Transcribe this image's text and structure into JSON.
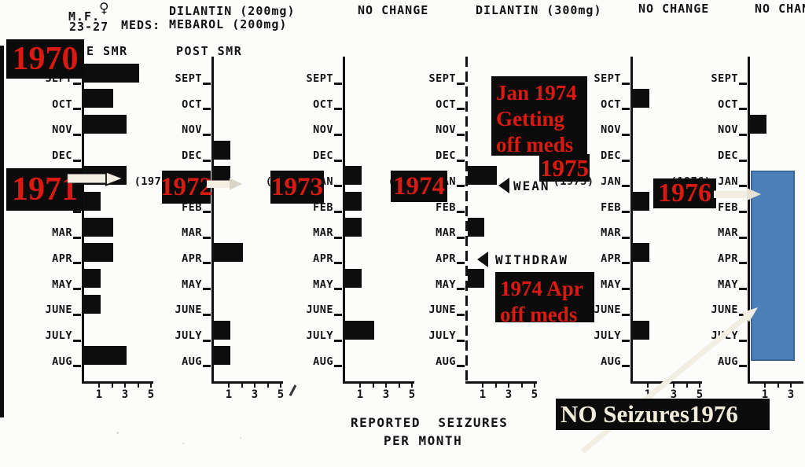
{
  "colors": {
    "annotation_red": "#d91a12",
    "overlay_blue": "#4d80b8",
    "box_black": "#0b0b0b",
    "arrow_cream": "#f2eee2",
    "ink": "#121212",
    "paper": "#fcfcfb"
  },
  "header": {
    "patient_initials": "M.F.",
    "sex_symbol": "♀",
    "age_range": "23-27",
    "meds_label": "MEDS:",
    "med_line1": "DILANTIN (200mg)",
    "med_line2": "MEBAROL (200mg)",
    "period2": "NO CHANGE",
    "period3": "DILANTIN (300mg)",
    "period4": "NO CHANGE",
    "period5": "NO CHAN",
    "pre_smr": "E SMR",
    "post_smr": "POST SMR"
  },
  "chart_data": {
    "type": "bar",
    "orientation": "horizontal",
    "title": "Reported seizures per month, Sept–Aug yearly panels, 1970–1976",
    "categories": [
      "SEPT",
      "OCT",
      "NOV",
      "DEC",
      "JAN",
      "FEB",
      "MAR",
      "APR",
      "MAY",
      "JUNE",
      "JULY",
      "AUG"
    ],
    "x_ticks": [
      1,
      3,
      5
    ],
    "xlim": [
      0,
      6
    ],
    "xlabel": "REPORTED SEIZURES PER MONTH",
    "xlabel_lines": [
      "REPORTED  SEIZURES",
      "PER MONTH"
    ],
    "legend_position": "none",
    "grid": false,
    "charts": [
      {
        "jan_axis_label": "JAN",
        "values": [
          4,
          2,
          3,
          0,
          3,
          1,
          2,
          2,
          1,
          1,
          0,
          3
        ]
      },
      {
        "jan_axis_label": "(1972) JAN",
        "values": [
          0,
          0,
          0,
          1,
          1,
          0,
          0,
          2,
          0,
          0,
          1,
          1
        ]
      },
      {
        "jan_axis_label": "(1973) JAN",
        "values": [
          0,
          0,
          0,
          0,
          1,
          1,
          1,
          0,
          1,
          0,
          2,
          0
        ]
      },
      {
        "jan_axis_label": "(1974) JAN",
        "values": [
          0,
          0,
          0,
          0,
          2,
          0,
          1,
          0,
          1,
          0,
          0,
          0
        ],
        "axis_style": "dashed",
        "annotations": [
          {
            "month": "JAN",
            "text": "WEAN"
          },
          {
            "month": "APR",
            "text": "WITHDRAW"
          }
        ]
      },
      {
        "jan_axis_label": "(1975) JAN",
        "values": [
          0,
          1,
          0,
          0,
          0,
          1,
          0,
          1,
          0,
          0,
          1,
          0
        ]
      },
      {
        "jan_axis_label": "(1976) JAN",
        "values": [
          0,
          0,
          1,
          0,
          0,
          0,
          0,
          0,
          0,
          0,
          0,
          0
        ],
        "overlay_months": [
          "JAN",
          "AUG"
        ]
      }
    ]
  },
  "red_annotations": {
    "y1970": "1970",
    "y1971": "1971",
    "y1972": "1972",
    "y1973": "1973",
    "y1974": "1974",
    "y1975": "1975",
    "y1976": "1976",
    "jan1974_note": {
      "line1": "Jan 1974",
      "line2": "Getting",
      "line3": "off meds"
    },
    "apr1974_note": {
      "line1": "1974 Apr",
      "line2": "off meds"
    },
    "no_seizures_note": "NO Seizures1976"
  }
}
